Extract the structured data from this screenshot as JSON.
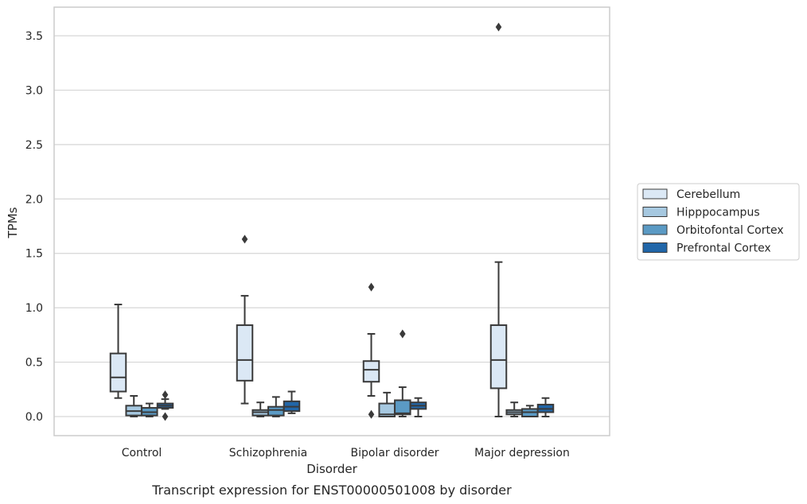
{
  "chart_data": {
    "type": "box",
    "title": "",
    "caption": "Transcript expression for ENST00000501008 by disorder",
    "xlabel": "Disorder",
    "ylabel": "TPMs",
    "ylim": [
      -0.17,
      3.77
    ],
    "yticks": [
      "0.0",
      "0.5",
      "1.0",
      "1.5",
      "2.0",
      "2.5",
      "3.0",
      "3.5"
    ],
    "grid": "horizontal",
    "legend_position": "right",
    "categories": [
      "Control",
      "Schizophrenia",
      "Bipolar disorder",
      "Major depression"
    ],
    "series": [
      {
        "name": "Cerebellum",
        "color": "#dbe8f5",
        "boxes": [
          {
            "whislo": 0.17,
            "q1": 0.23,
            "med": 0.36,
            "q3": 0.58,
            "whishi": 1.03,
            "fliers": []
          },
          {
            "whislo": 0.12,
            "q1": 0.33,
            "med": 0.52,
            "q3": 0.84,
            "whishi": 1.11,
            "fliers": [
              1.63
            ]
          },
          {
            "whislo": 0.19,
            "q1": 0.32,
            "med": 0.43,
            "q3": 0.51,
            "whishi": 0.76,
            "fliers": [
              1.19,
              0.02
            ]
          },
          {
            "whislo": 0.0,
            "q1": 0.26,
            "med": 0.52,
            "q3": 0.84,
            "whishi": 1.42,
            "fliers": [
              3.58
            ]
          }
        ]
      },
      {
        "name": "Hipppocampus",
        "color": "#a6c8e0",
        "boxes": [
          {
            "whislo": 0.0,
            "q1": 0.01,
            "med": 0.05,
            "q3": 0.1,
            "whishi": 0.19,
            "fliers": []
          },
          {
            "whislo": 0.0,
            "q1": 0.01,
            "med": 0.04,
            "q3": 0.06,
            "whishi": 0.13,
            "fliers": []
          },
          {
            "whislo": 0.0,
            "q1": 0.0,
            "med": 0.02,
            "q3": 0.12,
            "whishi": 0.22,
            "fliers": []
          },
          {
            "whislo": 0.0,
            "q1": 0.02,
            "med": 0.04,
            "q3": 0.06,
            "whishi": 0.13,
            "fliers": []
          }
        ]
      },
      {
        "name": "Orbitofontal Cortex",
        "color": "#5b9ac4",
        "boxes": [
          {
            "whislo": 0.0,
            "q1": 0.01,
            "med": 0.04,
            "q3": 0.08,
            "whishi": 0.12,
            "fliers": []
          },
          {
            "whislo": 0.0,
            "q1": 0.01,
            "med": 0.06,
            "q3": 0.09,
            "whishi": 0.18,
            "fliers": []
          },
          {
            "whislo": 0.0,
            "q1": 0.02,
            "med": 0.03,
            "q3": 0.15,
            "whishi": 0.27,
            "fliers": [
              0.76
            ]
          },
          {
            "whislo": 0.0,
            "q1": 0.0,
            "med": 0.04,
            "q3": 0.07,
            "whishi": 0.1,
            "fliers": []
          }
        ]
      },
      {
        "name": "Prefrontal Cortex",
        "color": "#2166a8",
        "boxes": [
          {
            "whislo": 0.07,
            "q1": 0.08,
            "med": 0.1,
            "q3": 0.12,
            "whishi": 0.16,
            "fliers": [
              0.2,
              0.0
            ]
          },
          {
            "whislo": 0.03,
            "q1": 0.05,
            "med": 0.09,
            "q3": 0.14,
            "whishi": 0.23,
            "fliers": []
          },
          {
            "whislo": 0.0,
            "q1": 0.07,
            "med": 0.1,
            "q3": 0.13,
            "whishi": 0.17,
            "fliers": []
          },
          {
            "whislo": 0.0,
            "q1": 0.04,
            "med": 0.07,
            "q3": 0.11,
            "whishi": 0.17,
            "fliers": []
          }
        ]
      }
    ]
  }
}
